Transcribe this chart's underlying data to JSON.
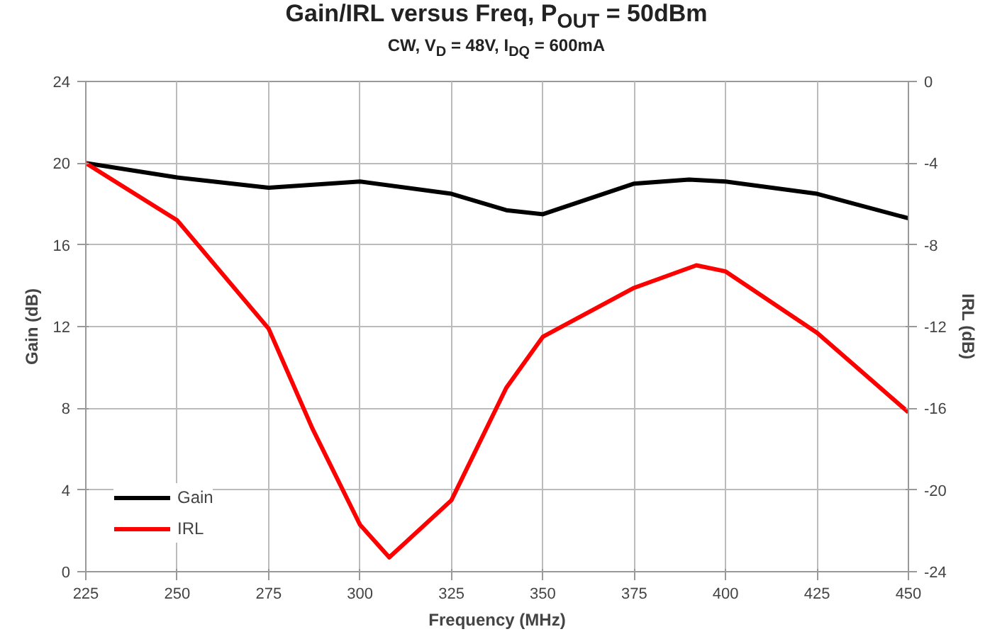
{
  "chart_data": {
    "type": "line",
    "title": "Gain/IRL versus Freq, P$_{OUT}$ = 50dBm",
    "subtitle": "CW, V$_{D}$ = 48V, I$_{DQ}$ = 600mA",
    "xlabel": "Frequency (MHz)",
    "ylabel": "Gain (dB)",
    "y2label": "IRL (dB)",
    "xlim": [
      225,
      450
    ],
    "xticks": [
      225,
      250,
      275,
      300,
      325,
      350,
      375,
      400,
      425,
      450
    ],
    "ylim": [
      0,
      24
    ],
    "yticks": [
      0,
      4,
      8,
      12,
      16,
      20,
      24
    ],
    "y2lim": [
      -24,
      0
    ],
    "y2ticks": [
      -24,
      -20,
      -16,
      -12,
      -8,
      -4,
      0
    ],
    "grid": true,
    "legend": "bottom left",
    "line_style": "solid",
    "series": [
      {
        "name": "Gain",
        "color": "#000000",
        "x": [
          225,
          250,
          275,
          300,
          325,
          340,
          350,
          375,
          390,
          400,
          425,
          450
        ],
        "values": [
          20,
          19.3,
          18.8,
          19.1,
          18.5,
          17.7,
          17.5,
          19.0,
          19.2,
          19.1,
          18.5,
          17.3
        ]
      },
      {
        "name": "IRL",
        "color": "#ff0000",
        "axis": "y2",
        "x": [
          225,
          250,
          275,
          287,
          300,
          308,
          325,
          340,
          350,
          375,
          392,
          400,
          425,
          450
        ],
        "values": [
          -4,
          -6.8,
          -12.1,
          -17,
          -21.7,
          -23.3,
          -20.5,
          -15,
          -12.5,
          -10.1,
          -9,
          -9.3,
          -12.3,
          -16.2
        ]
      }
    ]
  }
}
